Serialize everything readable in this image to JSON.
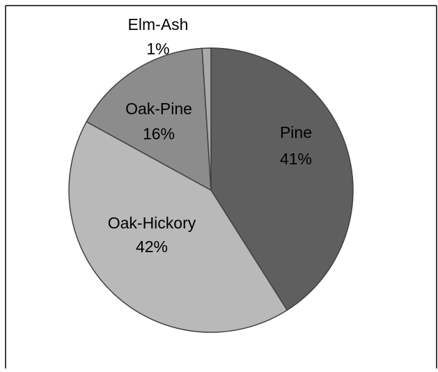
{
  "chart_data": {
    "type": "pie",
    "categories": [
      "Pine",
      "Oak-Hickory",
      "Oak-Pine",
      "Elm-Ash"
    ],
    "values": [
      41,
      42,
      16,
      1
    ],
    "value_labels": [
      "41%",
      "42%",
      "16%",
      "1%"
    ],
    "colors": [
      "#5f5f5f",
      "#b9b9b9",
      "#8c8c8c",
      "#a9a9a9"
    ]
  }
}
